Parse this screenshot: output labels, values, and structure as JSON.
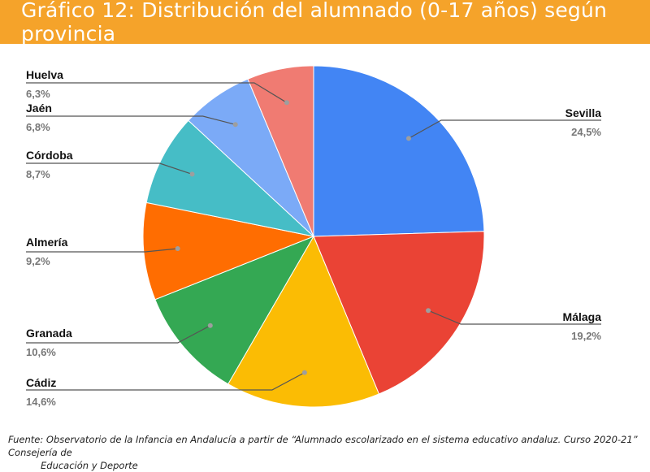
{
  "title": "Gráfico 12: Distribución del alumnado (0-17 años) según provincia",
  "colors": {
    "header_bg": "#f5a32a",
    "header_text": "#ffffff"
  },
  "chart_data": {
    "type": "pie",
    "title": "Gráfico 12: Distribución del alumnado (0-17 años) según provincia",
    "unit": "%",
    "slices": [
      {
        "label": "Sevilla",
        "value": 24.5,
        "display": "24,5%",
        "color": "#4285f4"
      },
      {
        "label": "Málaga",
        "value": 19.2,
        "display": "19,2%",
        "color": "#ea4335"
      },
      {
        "label": "Cádiz",
        "value": 14.6,
        "display": "14,6%",
        "color": "#fbbc04"
      },
      {
        "label": "Granada",
        "value": 10.6,
        "display": "10,6%",
        "color": "#34a853"
      },
      {
        "label": "Almería",
        "value": 9.2,
        "display": "9,2%",
        "color": "#ff6d01"
      },
      {
        "label": "Córdoba",
        "value": 8.7,
        "display": "8,7%",
        "color": "#46bdc6"
      },
      {
        "label": "Jaén",
        "value": 6.8,
        "display": "6,8%",
        "color": "#7baaf7"
      },
      {
        "label": "Huelva",
        "value": 6.3,
        "display": "6,3%",
        "color": "#f07b72"
      }
    ]
  },
  "source": {
    "line1": "Fuente: Observatorio de la Infancia en Andalucía a partir de “Alumnado escolarizado en el sistema educativo andaluz. Curso 2020-21” Consejería de",
    "line2": "Educación y Deporte"
  }
}
